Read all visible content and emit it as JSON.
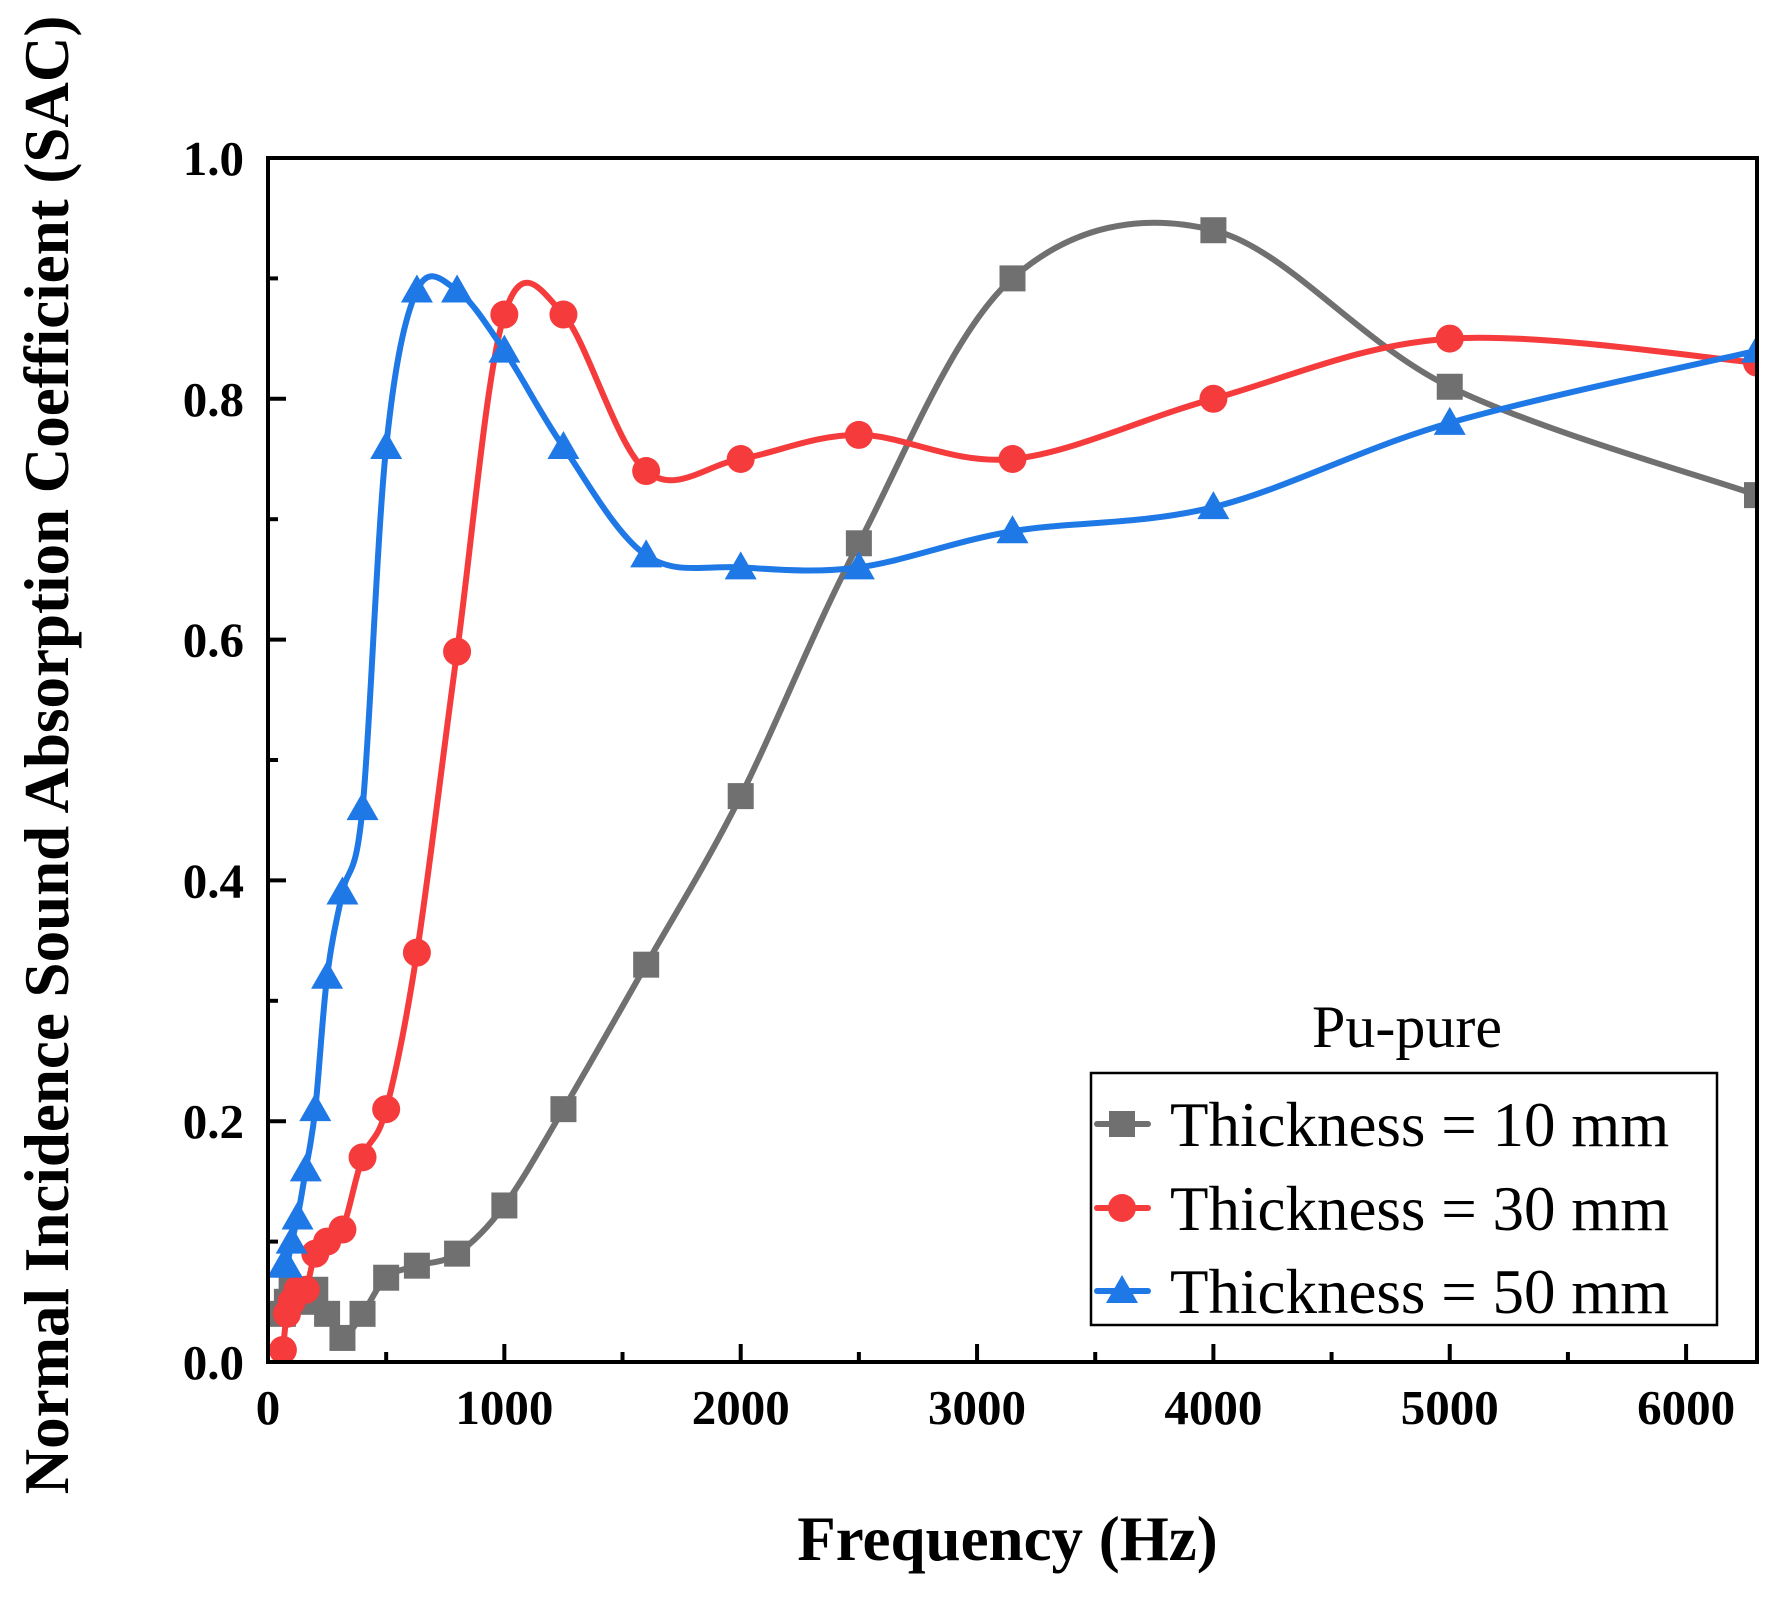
{
  "chart_data": {
    "type": "line",
    "xlabel": "Frequency (Hz)",
    "ylabel": "Normal Incidence Sound Absorption Coefficient (SAC)",
    "xlim": [
      0,
      6300
    ],
    "ylim": [
      0,
      1.0
    ],
    "xticks": [
      0,
      1000,
      2000,
      3000,
      4000,
      5000,
      6000
    ],
    "xtick_labels": [
      "0",
      "1000",
      "2000",
      "3000",
      "4000",
      "5000",
      "6000"
    ],
    "yticks": [
      0.0,
      0.2,
      0.4,
      0.6,
      0.8,
      1.0
    ],
    "ytick_labels": [
      "0.0",
      "0.2",
      "0.4",
      "0.6",
      "0.8",
      "1.0"
    ],
    "legend_title": "Pu-pure",
    "legend_position": "bottom-right",
    "grid": false,
    "series": [
      {
        "name": "Thickness = 10 mm",
        "color": "#707070",
        "marker": "square",
        "x": [
          63,
          80,
          100,
          125,
          160,
          200,
          250,
          315,
          400,
          500,
          630,
          800,
          1000,
          1250,
          1600,
          2000,
          2500,
          3150,
          4000,
          5000,
          6300
        ],
        "y": [
          0.04,
          0.05,
          0.06,
          0.06,
          0.05,
          0.06,
          0.04,
          0.02,
          0.04,
          0.07,
          0.08,
          0.09,
          0.13,
          0.21,
          0.33,
          0.47,
          0.68,
          0.9,
          0.94,
          0.81,
          0.72
        ]
      },
      {
        "name": "Thickness = 30 mm",
        "color": "#f53b3b",
        "marker": "circle",
        "x": [
          63,
          80,
          100,
          125,
          160,
          200,
          250,
          315,
          400,
          500,
          630,
          800,
          1000,
          1250,
          1600,
          2000,
          2500,
          3150,
          4000,
          5000,
          6300
        ],
        "y": [
          0.01,
          0.04,
          0.05,
          0.06,
          0.06,
          0.09,
          0.1,
          0.11,
          0.17,
          0.21,
          0.34,
          0.59,
          0.87,
          0.87,
          0.74,
          0.75,
          0.77,
          0.75,
          0.8,
          0.85,
          0.83
        ]
      },
      {
        "name": "Thickness = 50 mm",
        "color": "#1e78e6",
        "marker": "triangle",
        "x": [
          63,
          80,
          100,
          125,
          160,
          200,
          250,
          315,
          400,
          500,
          630,
          800,
          1000,
          1250,
          1600,
          2000,
          2500,
          3150,
          4000,
          5000,
          6300
        ],
        "y": [
          0.08,
          0.08,
          0.1,
          0.12,
          0.16,
          0.21,
          0.32,
          0.39,
          0.46,
          0.76,
          0.89,
          0.89,
          0.84,
          0.76,
          0.67,
          0.66,
          0.66,
          0.69,
          0.71,
          0.78,
          0.84
        ]
      }
    ]
  }
}
